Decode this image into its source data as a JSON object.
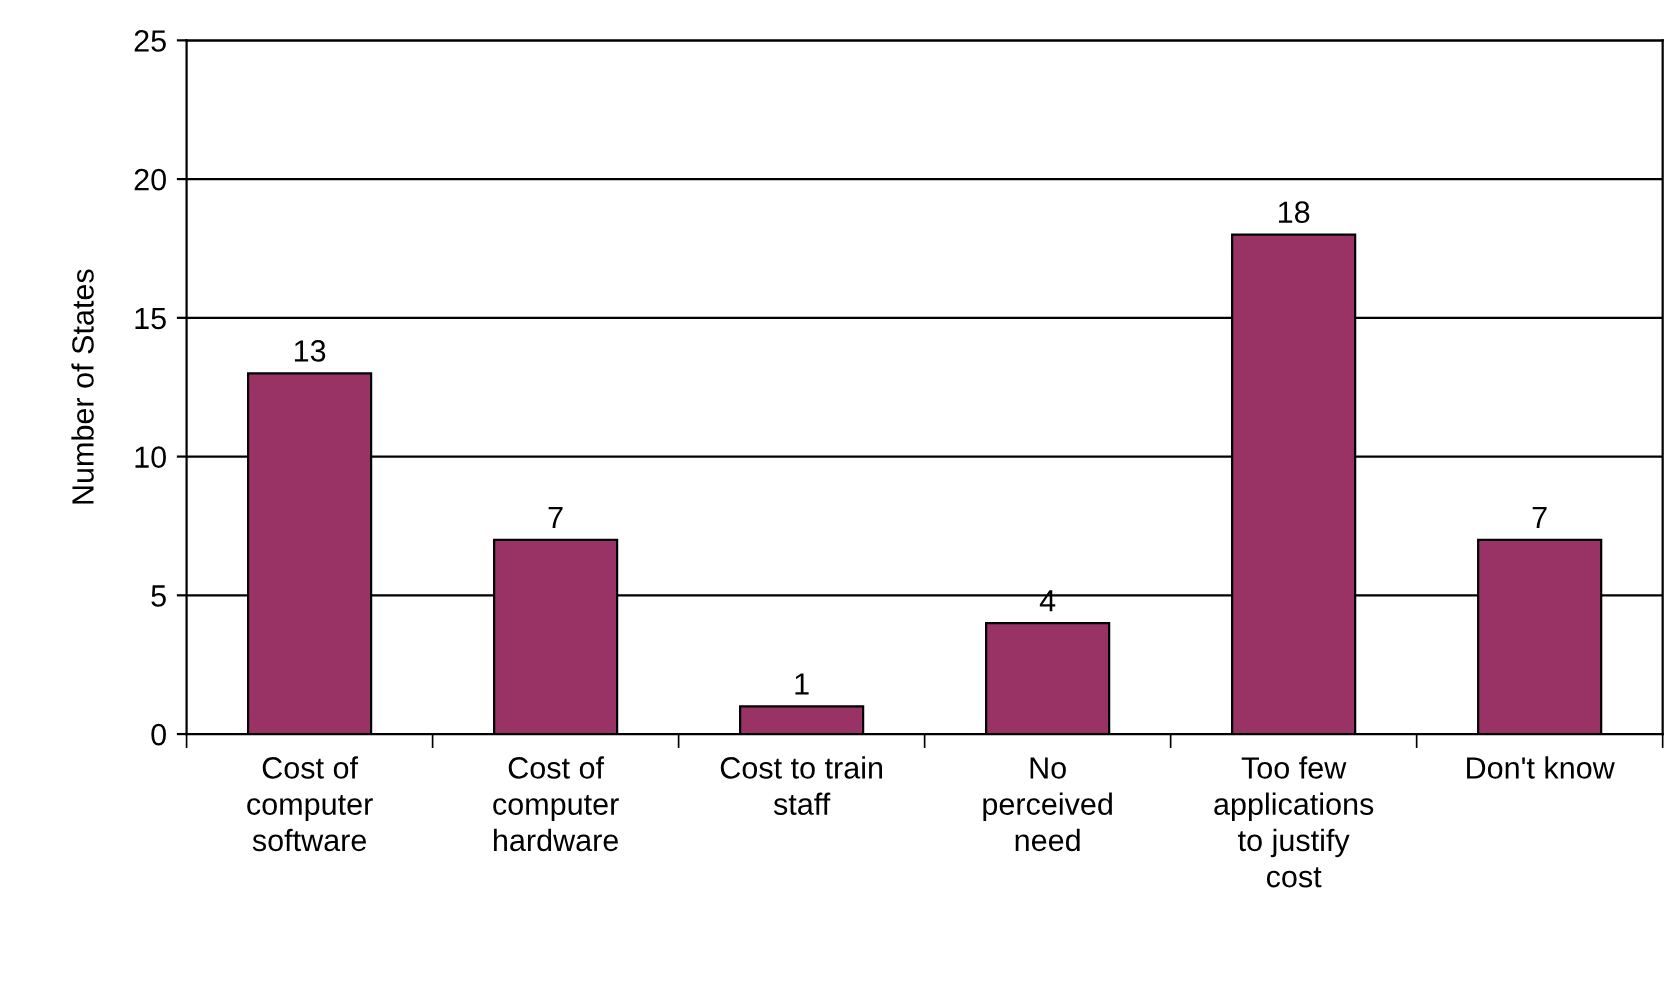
{
  "chart_data": {
    "type": "bar",
    "ylabel": "Number of States",
    "categories": [
      "Cost of\ncomputer\nsoftware",
      "Cost of\ncomputer\nhardware",
      "Cost to train\nstaff",
      "No\nperceived\nneed",
      "Too few\napplications\nto justify\ncost",
      "Don't know"
    ],
    "values": [
      13,
      7,
      1,
      4,
      18,
      7
    ],
    "color": "#993366",
    "ylim": [
      0,
      25
    ],
    "yticks": [
      0,
      5,
      10,
      15,
      20,
      25
    ],
    "grid": "y",
    "data_labels": true
  }
}
